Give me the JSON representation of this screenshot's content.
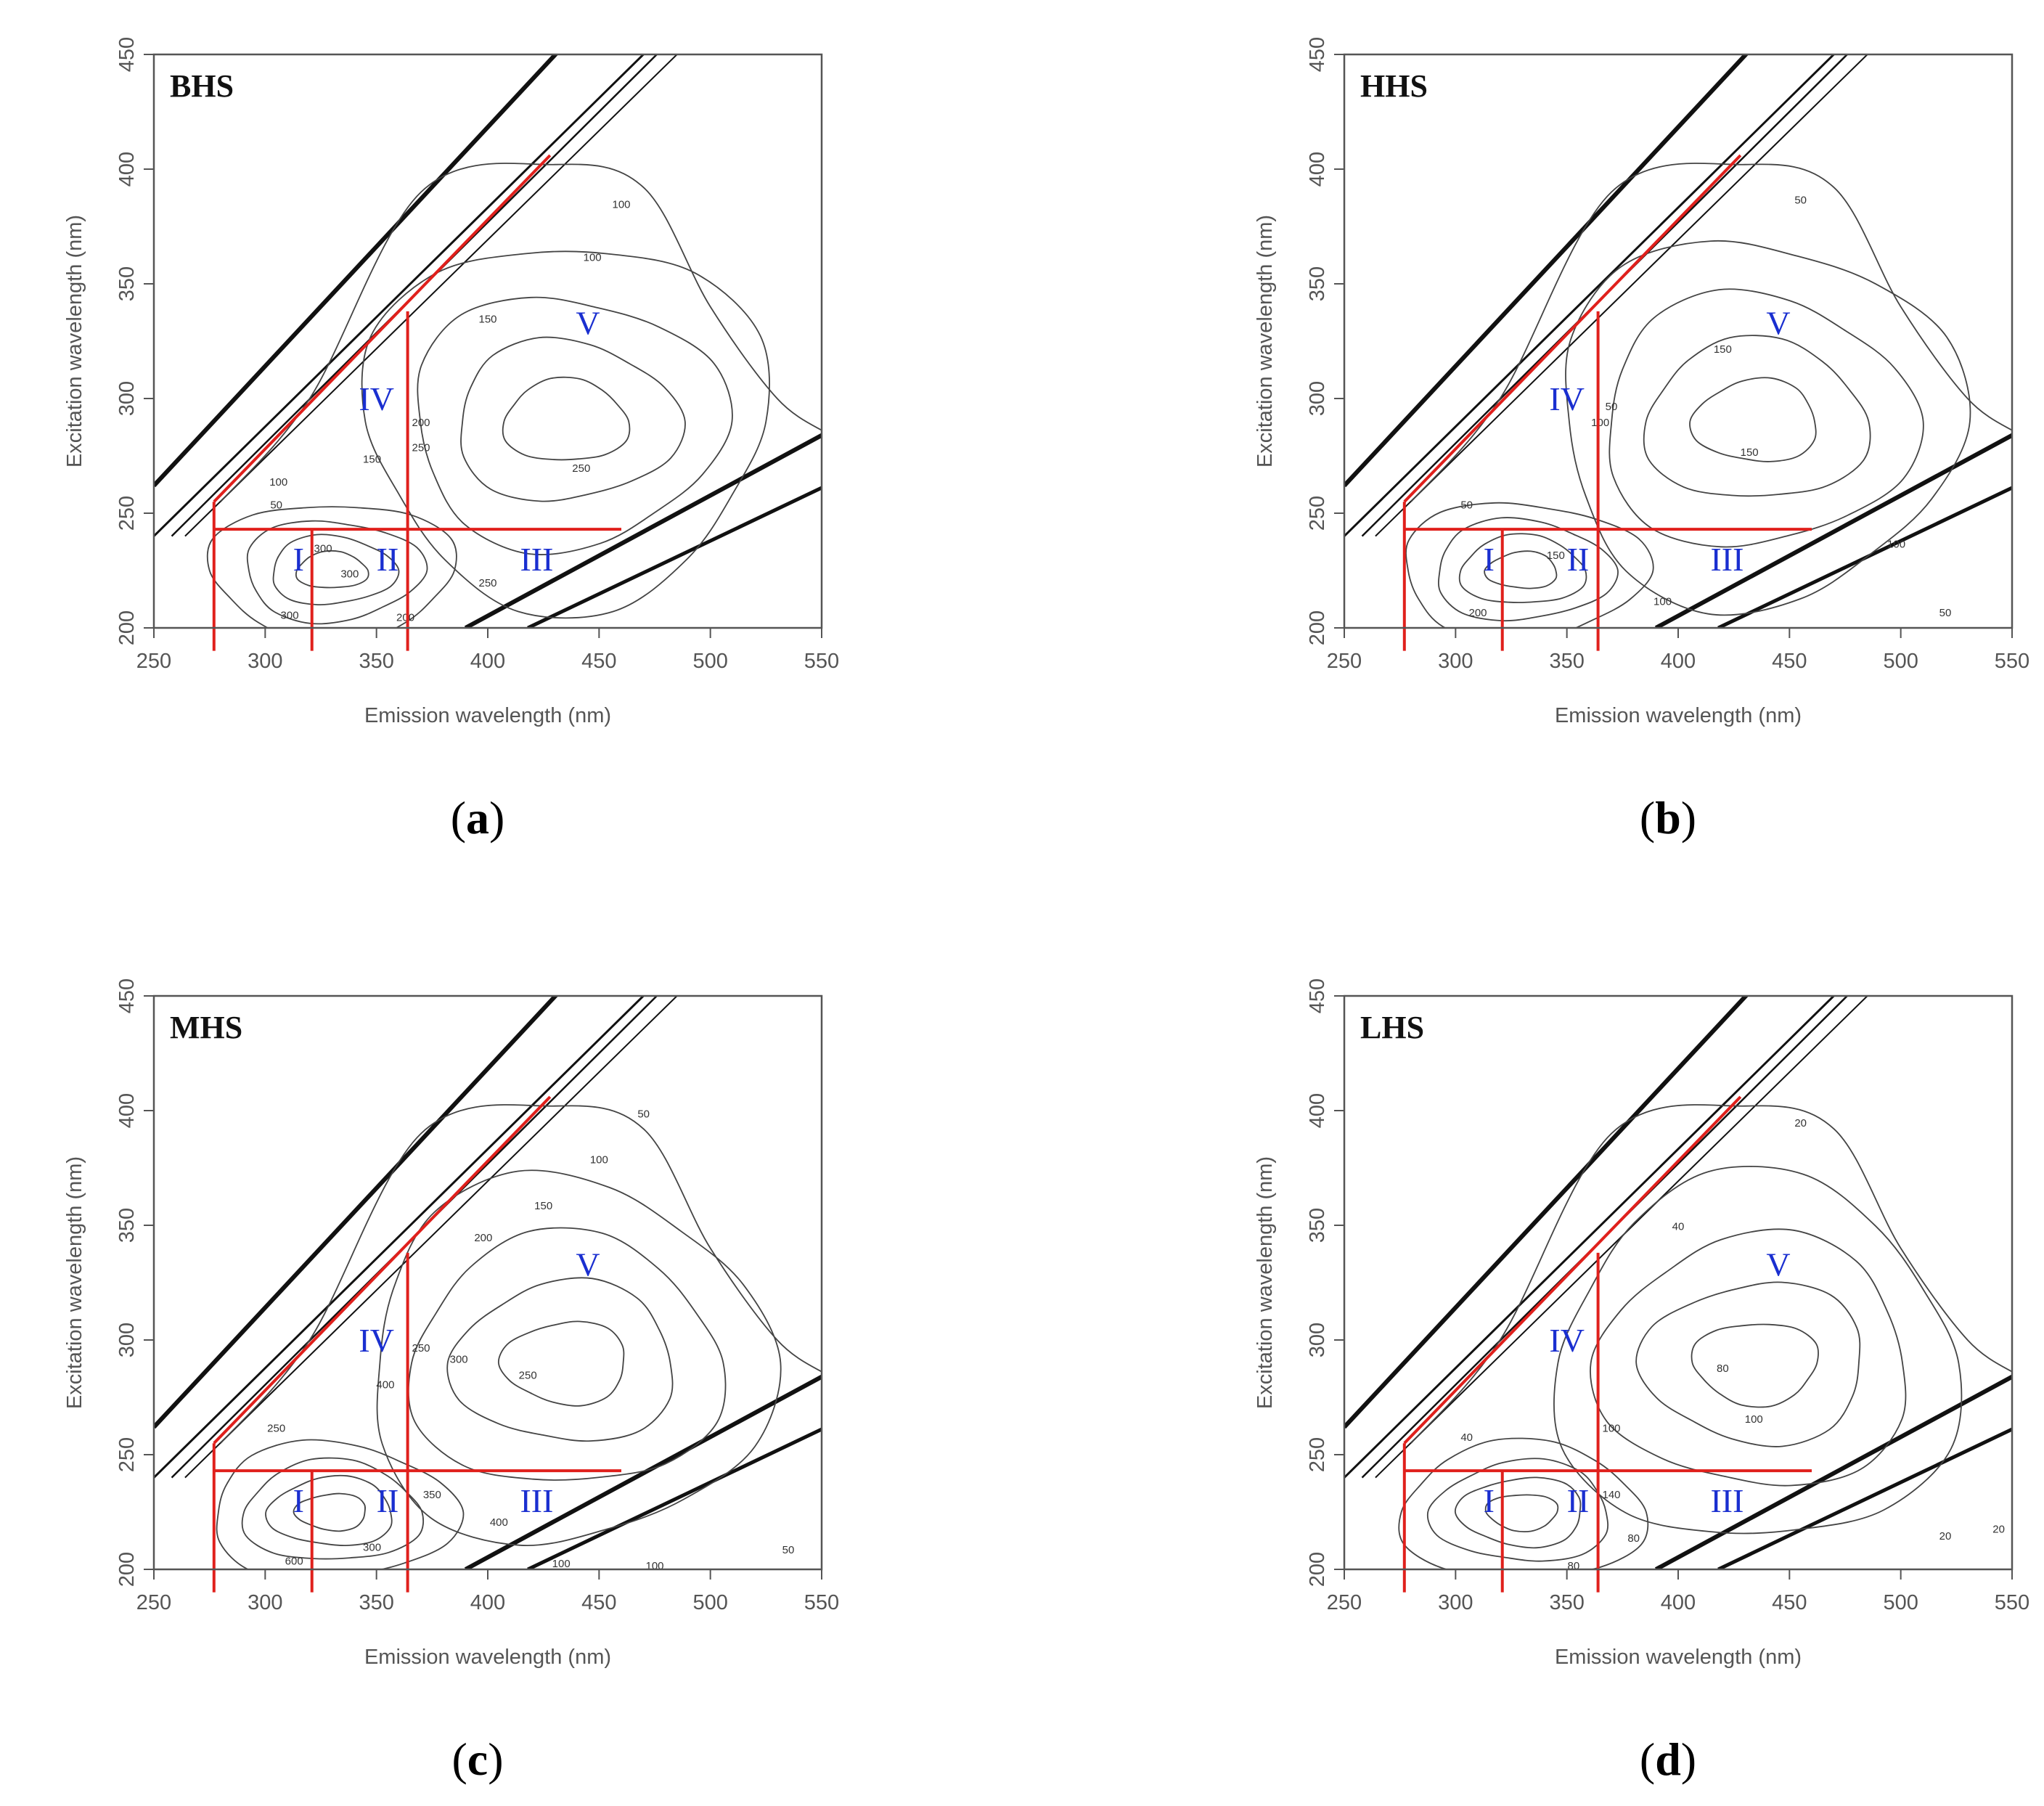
{
  "chart_data": [
    {
      "type": "contour",
      "panel_tag": "BHS",
      "caption": "a",
      "xlabel": "Emission wavelength (nm)",
      "ylabel": "Excitation wavelength (nm)",
      "xlim": [
        250,
        550
      ],
      "ylim": [
        200,
        450
      ],
      "xticks": [
        250,
        300,
        350,
        400,
        450,
        500,
        550
      ],
      "yticks": [
        200,
        250,
        300,
        350,
        400,
        450
      ],
      "region_labels": [
        {
          "text": "I",
          "x": 315,
          "y": 230
        },
        {
          "text": "II",
          "x": 355,
          "y": 230
        },
        {
          "text": "III",
          "x": 422,
          "y": 230
        },
        {
          "text": "IV",
          "x": 350,
          "y": 300
        },
        {
          "text": "V",
          "x": 445,
          "y": 333
        }
      ],
      "contour_labels": [
        {
          "text": "50",
          "x": 305,
          "y": 252
        },
        {
          "text": "100",
          "x": 306,
          "y": 262
        },
        {
          "text": "100",
          "x": 460,
          "y": 383
        },
        {
          "text": "100",
          "x": 447,
          "y": 360
        },
        {
          "text": "150",
          "x": 400,
          "y": 333
        },
        {
          "text": "150",
          "x": 348,
          "y": 272
        },
        {
          "text": "200",
          "x": 370,
          "y": 288
        },
        {
          "text": "250",
          "x": 370,
          "y": 277
        },
        {
          "text": "250",
          "x": 442,
          "y": 268
        },
        {
          "text": "300",
          "x": 338,
          "y": 222
        },
        {
          "text": "300",
          "x": 311,
          "y": 204
        },
        {
          "text": "250",
          "x": 400,
          "y": 218
        },
        {
          "text": "300",
          "x": 326,
          "y": 233
        },
        {
          "text": "200",
          "x": 363,
          "y": 203
        }
      ]
    },
    {
      "type": "contour",
      "panel_tag": "HHS",
      "caption": "b",
      "xlabel": "Emission wavelength (nm)",
      "ylabel": "Excitation wavelength (nm)",
      "xlim": [
        250,
        550
      ],
      "ylim": [
        200,
        450
      ],
      "xticks": [
        250,
        300,
        350,
        400,
        450,
        500,
        550
      ],
      "yticks": [
        200,
        250,
        300,
        350,
        400,
        450
      ],
      "region_labels": [
        {
          "text": "I",
          "x": 315,
          "y": 230
        },
        {
          "text": "II",
          "x": 355,
          "y": 230
        },
        {
          "text": "III",
          "x": 422,
          "y": 230
        },
        {
          "text": "IV",
          "x": 350,
          "y": 300
        },
        {
          "text": "V",
          "x": 445,
          "y": 333
        }
      ],
      "contour_labels": [
        {
          "text": "50",
          "x": 305,
          "y": 252
        },
        {
          "text": "50",
          "x": 455,
          "y": 385
        },
        {
          "text": "50",
          "x": 370,
          "y": 295
        },
        {
          "text": "100",
          "x": 365,
          "y": 288
        },
        {
          "text": "150",
          "x": 420,
          "y": 320
        },
        {
          "text": "150",
          "x": 432,
          "y": 275
        },
        {
          "text": "150",
          "x": 345,
          "y": 230
        },
        {
          "text": "200",
          "x": 310,
          "y": 205
        },
        {
          "text": "100",
          "x": 393,
          "y": 210
        },
        {
          "text": "100",
          "x": 498,
          "y": 235
        },
        {
          "text": "50",
          "x": 520,
          "y": 205
        }
      ]
    },
    {
      "type": "contour",
      "panel_tag": "MHS",
      "caption": "c",
      "xlabel": "Emission wavelength (nm)",
      "ylabel": "Excitation wavelength (nm)",
      "xlim": [
        250,
        550
      ],
      "ylim": [
        200,
        450
      ],
      "xticks": [
        250,
        300,
        350,
        400,
        450,
        500,
        550
      ],
      "yticks": [
        200,
        250,
        300,
        350,
        400,
        450
      ],
      "region_labels": [
        {
          "text": "I",
          "x": 315,
          "y": 230
        },
        {
          "text": "II",
          "x": 355,
          "y": 230
        },
        {
          "text": "III",
          "x": 422,
          "y": 230
        },
        {
          "text": "IV",
          "x": 350,
          "y": 300
        },
        {
          "text": "V",
          "x": 445,
          "y": 333
        }
      ],
      "contour_labels": [
        {
          "text": "50",
          "x": 470,
          "y": 397
        },
        {
          "text": "100",
          "x": 450,
          "y": 377
        },
        {
          "text": "150",
          "x": 425,
          "y": 357
        },
        {
          "text": "200",
          "x": 398,
          "y": 343
        },
        {
          "text": "300",
          "x": 387,
          "y": 290
        },
        {
          "text": "250",
          "x": 370,
          "y": 295
        },
        {
          "text": "250",
          "x": 418,
          "y": 283
        },
        {
          "text": "400",
          "x": 354,
          "y": 279
        },
        {
          "text": "250",
          "x": 305,
          "y": 260
        },
        {
          "text": "350",
          "x": 375,
          "y": 231
        },
        {
          "text": "400",
          "x": 405,
          "y": 219
        },
        {
          "text": "300",
          "x": 348,
          "y": 208
        },
        {
          "text": "100",
          "x": 433,
          "y": 201
        },
        {
          "text": "100",
          "x": 475,
          "y": 200
        },
        {
          "text": "50",
          "x": 535,
          "y": 207
        },
        {
          "text": "600",
          "x": 313,
          "y": 202
        }
      ]
    },
    {
      "type": "contour",
      "panel_tag": "LHS",
      "caption": "d",
      "xlabel": "Emission wavelength (nm)",
      "ylabel": "Excitation wavelength (nm)",
      "xlim": [
        250,
        550
      ],
      "ylim": [
        200,
        450
      ],
      "xticks": [
        250,
        300,
        350,
        400,
        450,
        500,
        550
      ],
      "yticks": [
        200,
        250,
        300,
        350,
        400,
        450
      ],
      "region_labels": [
        {
          "text": "I",
          "x": 315,
          "y": 230
        },
        {
          "text": "II",
          "x": 355,
          "y": 230
        },
        {
          "text": "III",
          "x": 422,
          "y": 230
        },
        {
          "text": "IV",
          "x": 350,
          "y": 300
        },
        {
          "text": "V",
          "x": 445,
          "y": 333
        }
      ],
      "contour_labels": [
        {
          "text": "20",
          "x": 455,
          "y": 393
        },
        {
          "text": "40",
          "x": 400,
          "y": 348
        },
        {
          "text": "80",
          "x": 420,
          "y": 286
        },
        {
          "text": "100",
          "x": 434,
          "y": 264
        },
        {
          "text": "40",
          "x": 305,
          "y": 256
        },
        {
          "text": "100",
          "x": 370,
          "y": 260
        },
        {
          "text": "140",
          "x": 370,
          "y": 231
        },
        {
          "text": "80",
          "x": 380,
          "y": 212
        },
        {
          "text": "80",
          "x": 353,
          "y": 200
        },
        {
          "text": "20",
          "x": 520,
          "y": 213
        },
        {
          "text": "20",
          "x": 544,
          "y": 216
        }
      ]
    }
  ]
}
